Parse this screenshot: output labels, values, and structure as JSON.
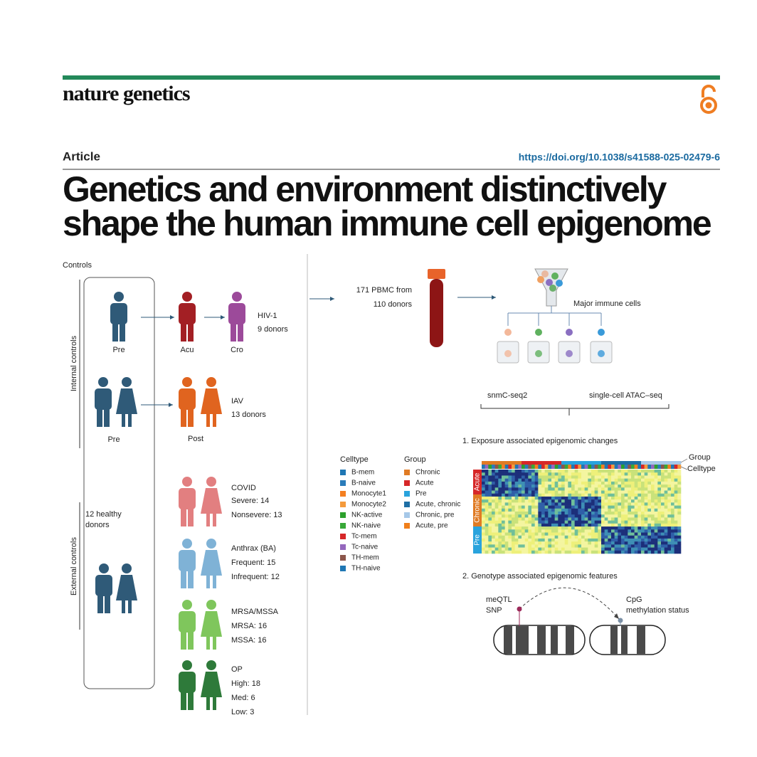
{
  "header": {
    "journal": "nature genetics",
    "article_type": "Article",
    "doi": "https://doi.org/10.1038/s41588-025-02479-6",
    "title_lines": [
      "Genetics and environment distinctively",
      "shape the human immune cell epigenome"
    ]
  },
  "figure": {
    "controls_label": "Controls",
    "internal_label": "Internal controls",
    "external_label": "External controls",
    "hiv": {
      "stages": [
        "Pre",
        "Acu",
        "Cro"
      ],
      "name": "HIV-1",
      "donors": "9 donors"
    },
    "iav": {
      "stages": [
        "Pre",
        "Post"
      ],
      "name": "IAV",
      "donors": "13 donors"
    },
    "healthy": [
      "12 healthy",
      "donors"
    ],
    "cohorts": [
      {
        "name": "COVID",
        "details": [
          "Severe: 14",
          "Nonsevere: 13"
        ],
        "color": "#e27f80"
      },
      {
        "name": "Anthrax (BA)",
        "details": [
          "Frequent: 15",
          "Infrequent: 12"
        ],
        "color": "#7fb2d6"
      },
      {
        "name": "MRSA/MSSA",
        "details": [
          "MRSA: 16",
          "MSSA: 16"
        ],
        "color": "#7fc65c"
      },
      {
        "name": "OP",
        "details": [
          "High: 18",
          "Med: 6",
          "Low: 3"
        ],
        "color": "#2e7a3a"
      }
    ],
    "pbmc": [
      "171 PBMC from",
      "110 donors"
    ],
    "cells_label": "Major immune cells",
    "assays": [
      "snmC-seq2",
      "single-cell ATAC–seq"
    ],
    "panel1": {
      "title": "1. Exposure associated epigenomic changes",
      "celltype_legend": {
        "title": "Celltype",
        "items": [
          {
            "name": "B-mem",
            "color": "#1f77b4"
          },
          {
            "name": "B-naive",
            "color": "#2a7cba"
          },
          {
            "name": "Monocyte1",
            "color": "#f47f20"
          },
          {
            "name": "Monocyte2",
            "color": "#f49a3c"
          },
          {
            "name": "NK-active",
            "color": "#2ca02c"
          },
          {
            "name": "NK-naive",
            "color": "#38a838"
          },
          {
            "name": "Tc-mem",
            "color": "#d62728"
          },
          {
            "name": "Tc-naive",
            "color": "#9467bd"
          },
          {
            "name": "TH-mem",
            "color": "#8c564b"
          },
          {
            "name": "TH-naive",
            "color": "#1f77b4"
          }
        ]
      },
      "group_legend": {
        "title": "Group",
        "items": [
          {
            "name": "Chronic",
            "color": "#e07b24"
          },
          {
            "name": "Acute",
            "color": "#d62728"
          },
          {
            "name": "Pre",
            "color": "#29a3dd"
          },
          {
            "name": "Acute, chronic",
            "color": "#1f6fa5"
          },
          {
            "name": "Chronic, pre",
            "color": "#a6c8e8"
          },
          {
            "name": "Acute, pre",
            "color": "#f07f1a"
          }
        ]
      },
      "bar_labels": [
        "Group",
        "Celltype"
      ],
      "row_labels": [
        "Acute",
        "Chronic",
        "Pre"
      ]
    },
    "panel2": {
      "title": "2. Genotype associated epigenomic features",
      "snp_label": [
        "meQTL",
        "SNP"
      ],
      "cpg_label": [
        "CpG",
        "methylation status"
      ]
    }
  }
}
